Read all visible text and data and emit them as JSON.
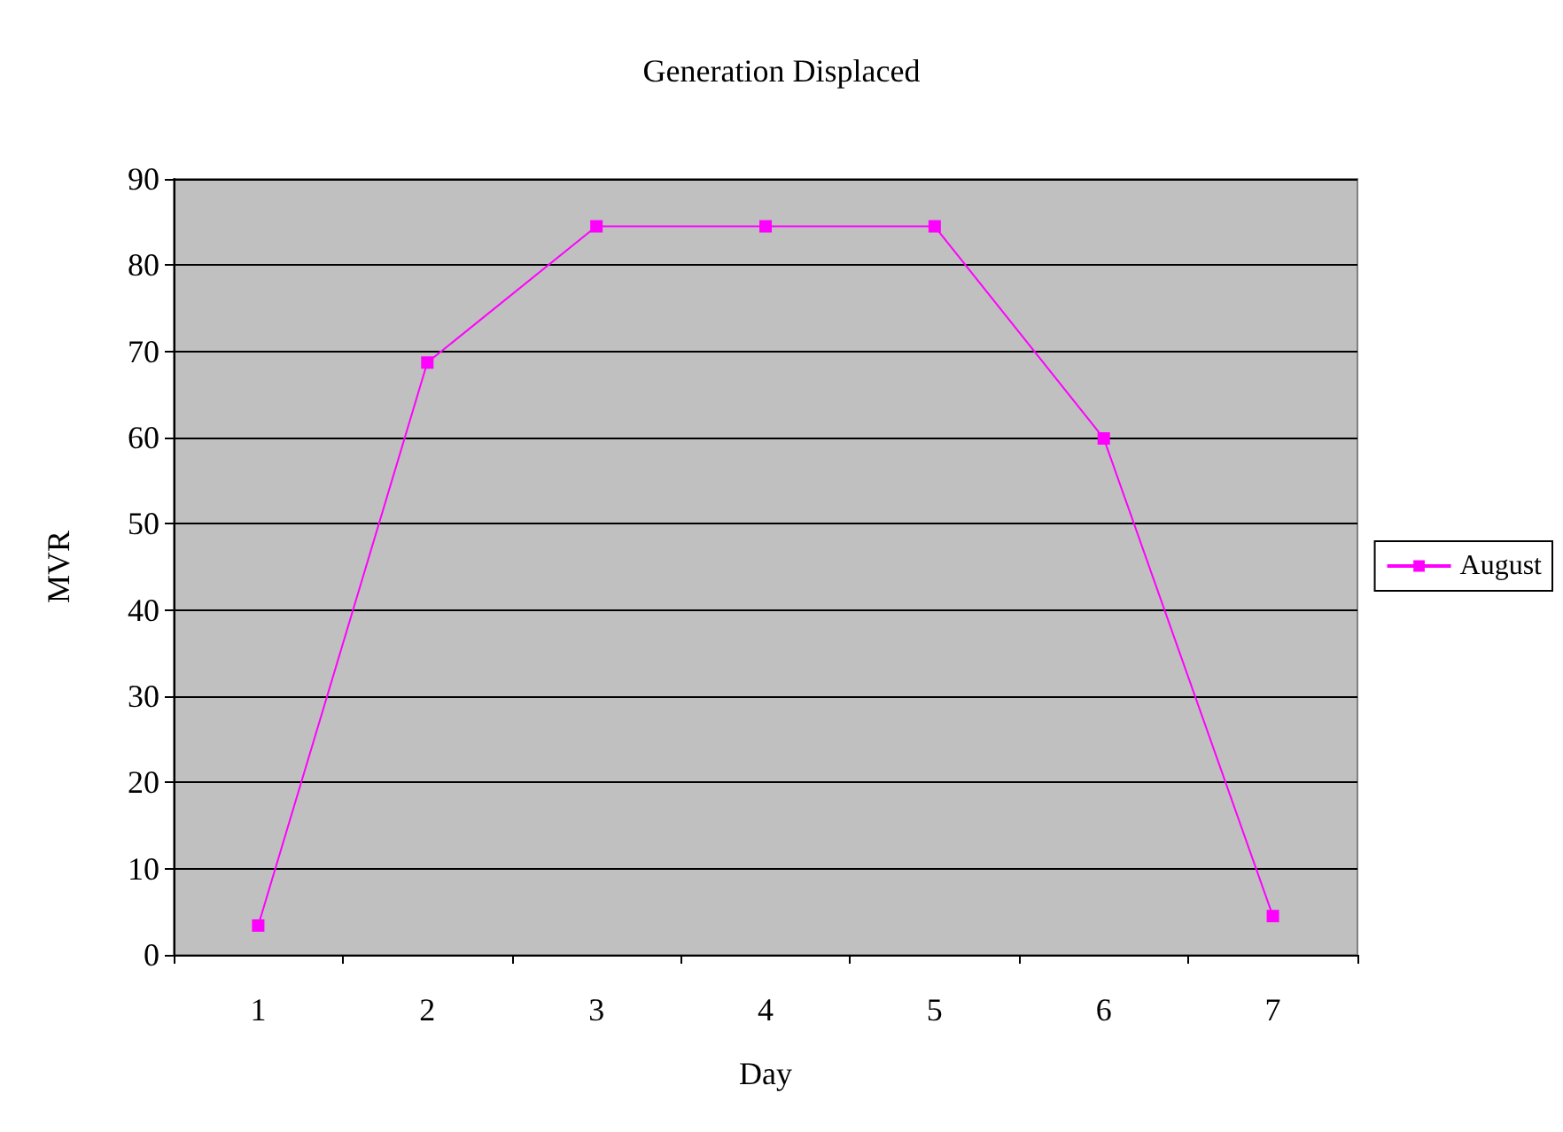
{
  "chart_data": {
    "type": "line",
    "title": "Generation Displaced",
    "xlabel": "Day",
    "ylabel": "MVR",
    "categories": [
      "1",
      "2",
      "3",
      "4",
      "5",
      "6",
      "7"
    ],
    "series": [
      {
        "name": "August",
        "color": "#ff00ff",
        "values": [
          3.4,
          68.7,
          84.5,
          84.5,
          84.5,
          59.9,
          4.5
        ]
      }
    ],
    "ylim": [
      0,
      90
    ],
    "yticks": [
      0,
      10,
      20,
      30,
      40,
      50,
      60,
      70,
      80,
      90
    ],
    "grid": "y",
    "legend": "right",
    "marker": "square",
    "line_style": "solid"
  }
}
